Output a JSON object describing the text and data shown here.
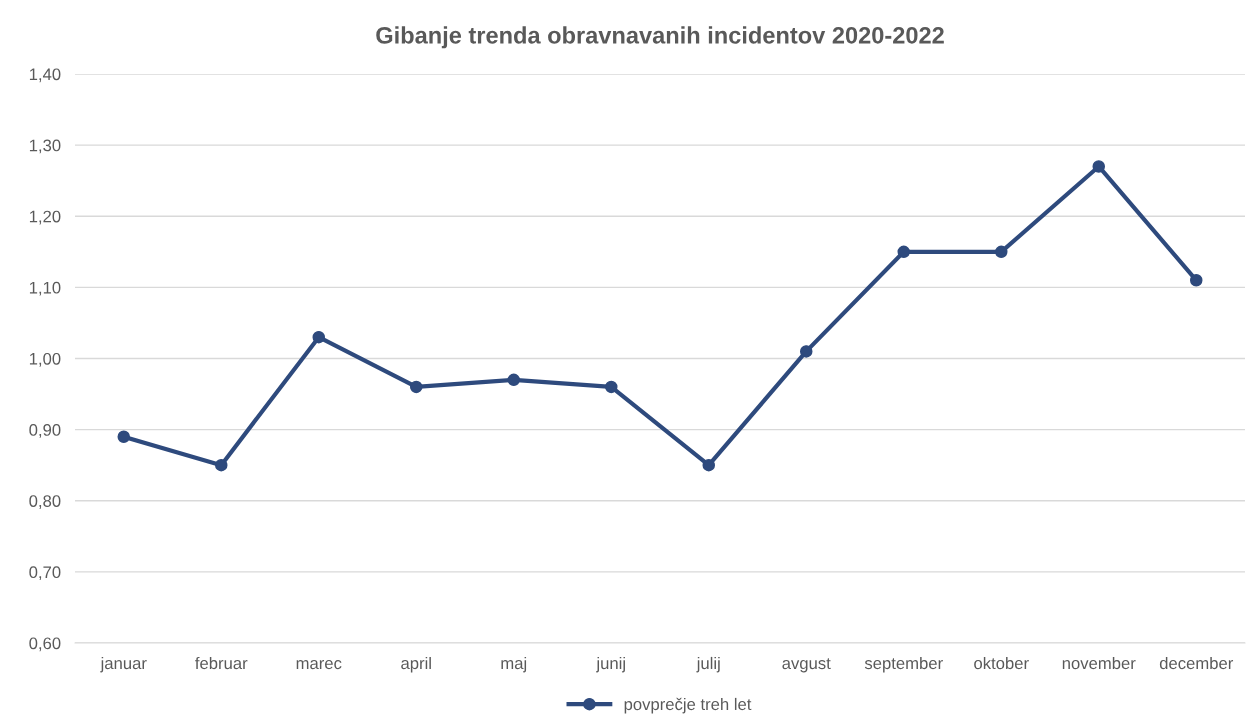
{
  "chart_data": {
    "type": "line",
    "title": "Gibanje trenda obravnavanih incidentov 2020-2022",
    "categories": [
      "januar",
      "februar",
      "marec",
      "april",
      "maj",
      "junij",
      "julij",
      "avgust",
      "september",
      "oktober",
      "november",
      "december"
    ],
    "series": [
      {
        "name": "povprečje treh let",
        "color": "#2e4a7d",
        "values": [
          0.89,
          0.85,
          1.03,
          0.96,
          0.97,
          0.96,
          0.85,
          1.01,
          1.15,
          1.15,
          1.27,
          1.11
        ]
      }
    ],
    "ylim": [
      0.6,
      1.4
    ],
    "yticks": [
      {
        "value": 0.6,
        "label": "0,60"
      },
      {
        "value": 0.7,
        "label": "0,70"
      },
      {
        "value": 0.8,
        "label": "0,80"
      },
      {
        "value": 0.9,
        "label": "0,90"
      },
      {
        "value": 1.0,
        "label": "1,00"
      },
      {
        "value": 1.1,
        "label": "1,10"
      },
      {
        "value": 1.2,
        "label": "1,20"
      },
      {
        "value": 1.3,
        "label": "1,30"
      },
      {
        "value": 1.4,
        "label": "1,40"
      }
    ],
    "grid": "y",
    "legend": "bottom",
    "marker": "circle",
    "line_style": "solid"
  }
}
